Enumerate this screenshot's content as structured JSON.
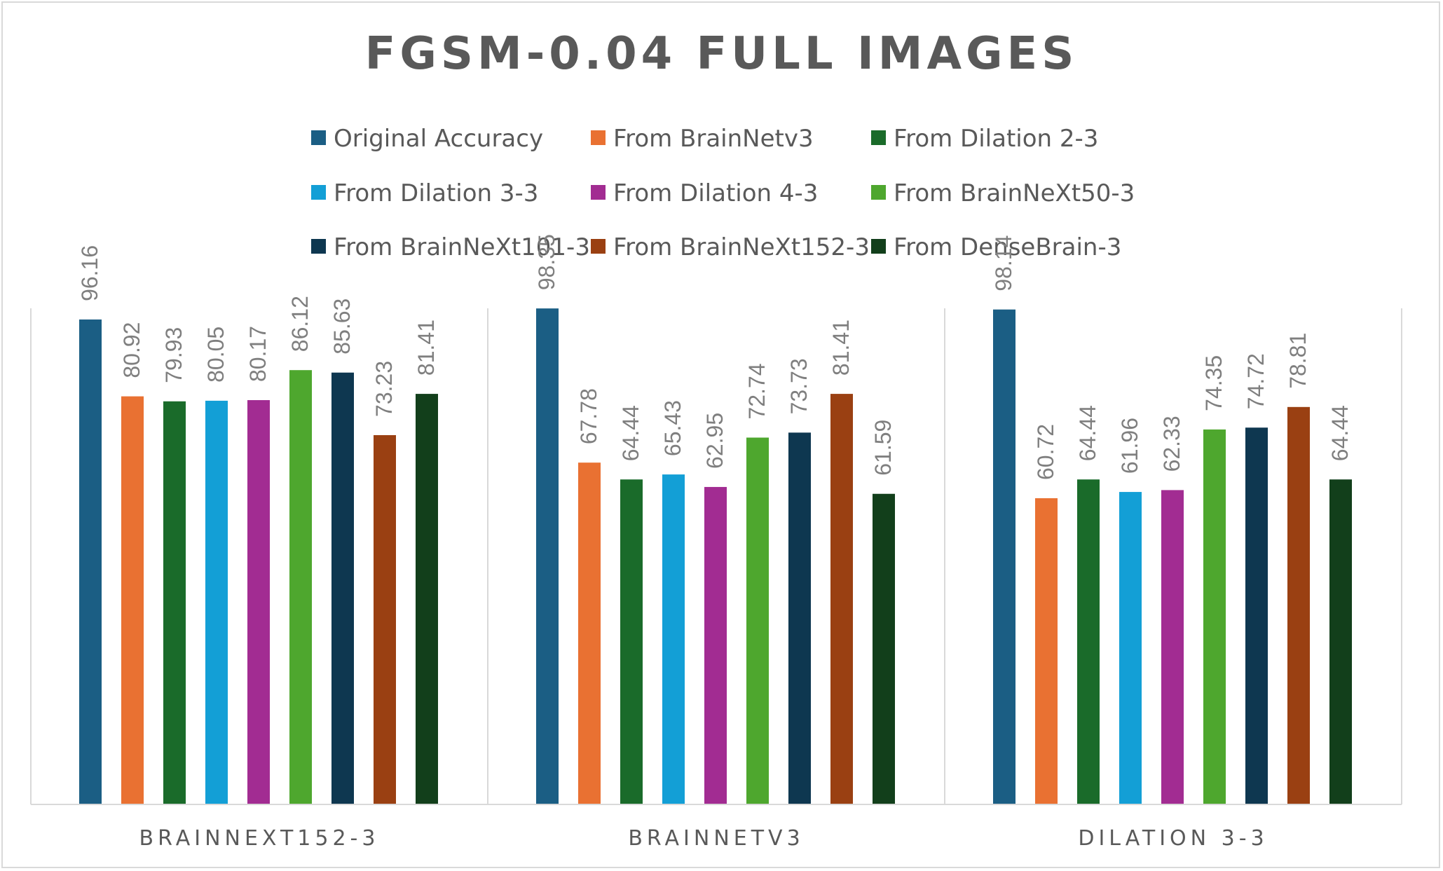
{
  "chart_data": {
    "type": "bar",
    "title": "FGSM-0.04 FULL IMAGES",
    "categories": [
      "BRAINNEXT152-3",
      "BRAINNETV3",
      "DILATION 3-3"
    ],
    "ylim": [
      0,
      100
    ],
    "grid": false,
    "legend_position": "top",
    "series": [
      {
        "name": "Original Accuracy",
        "color": "#1b5e84",
        "values": [
          96.16,
          98.35,
          98.14
        ]
      },
      {
        "name": "From BrainNetv3",
        "color": "#e97132",
        "values": [
          80.92,
          67.78,
          60.72
        ]
      },
      {
        "name": "From Dilation 2-3",
        "color": "#1a6b2a",
        "values": [
          79.93,
          64.44,
          64.44
        ]
      },
      {
        "name": "From Dilation 3-3",
        "color": "#139fd6",
        "values": [
          80.05,
          65.43,
          61.96
        ]
      },
      {
        "name": "From Dilation 4-3",
        "color": "#a22c92",
        "values": [
          80.17,
          62.95,
          62.33
        ]
      },
      {
        "name": "From BrainNeXt50-3",
        "color": "#4ea72e",
        "values": [
          86.12,
          72.74,
          74.35
        ]
      },
      {
        "name": "From BrainNeXt101-3",
        "color": "#0e3750",
        "values": [
          85.63,
          73.73,
          74.72
        ]
      },
      {
        "name": "From BrainNeXt152-3",
        "color": "#9a4012",
        "values": [
          73.23,
          81.41,
          78.81
        ]
      },
      {
        "name": "From DenseBrain-3",
        "color": "#123f1b",
        "values": [
          81.41,
          61.59,
          64.44
        ]
      }
    ]
  }
}
